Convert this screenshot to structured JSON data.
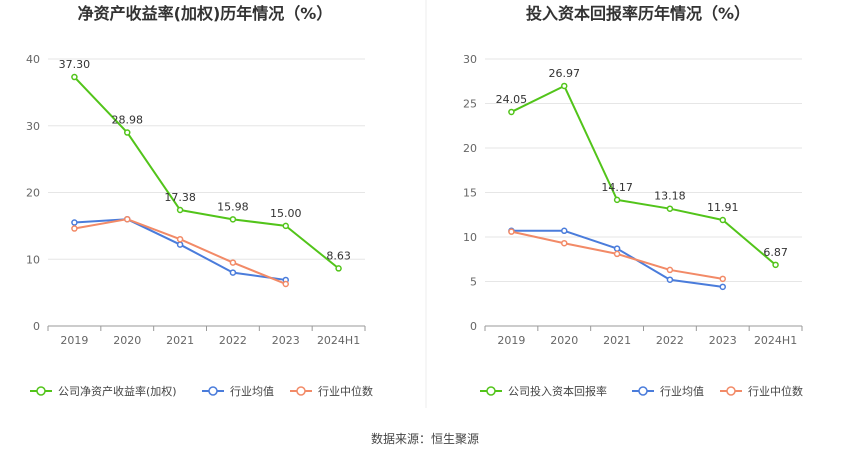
{
  "source": "数据来源：恒生聚源",
  "chart_data": [
    {
      "type": "line",
      "title": "净资产收益率(加权)历年情况（%）",
      "categories": [
        "2019",
        "2020",
        "2021",
        "2022",
        "2023",
        "2024H1"
      ],
      "ylim": [
        0,
        40
      ],
      "yticks": [
        0,
        10,
        20,
        30,
        40
      ],
      "series": [
        {
          "name": "公司净资产收益率(加权)",
          "color": "#52c41a",
          "labeled": true,
          "values": [
            37.3,
            28.98,
            17.38,
            15.98,
            15.0,
            8.63
          ],
          "labels": [
            "37.30",
            "28.98",
            "17.38",
            "15.98",
            "15.00",
            "8.63"
          ]
        },
        {
          "name": "行业均值",
          "color": "#4a7cdb",
          "labeled": false,
          "values": [
            15.5,
            16.0,
            12.2,
            8.0,
            6.9,
            null
          ]
        },
        {
          "name": "行业中位数",
          "color": "#f28a67",
          "labeled": false,
          "values": [
            14.6,
            16.0,
            13.0,
            9.5,
            6.3,
            null
          ]
        }
      ]
    },
    {
      "type": "line",
      "title": "投入资本回报率历年情况（%）",
      "categories": [
        "2019",
        "2020",
        "2021",
        "2022",
        "2023",
        "2024H1"
      ],
      "ylim": [
        0,
        30
      ],
      "yticks": [
        0,
        5,
        10,
        15,
        20,
        25,
        30
      ],
      "series": [
        {
          "name": "公司投入资本回报率",
          "color": "#52c41a",
          "labeled": true,
          "values": [
            24.05,
            26.97,
            14.17,
            13.18,
            11.91,
            6.87
          ],
          "labels": [
            "24.05",
            "26.97",
            "14.17",
            "13.18",
            "11.91",
            "6.87"
          ]
        },
        {
          "name": "行业均值",
          "color": "#4a7cdb",
          "labeled": false,
          "values": [
            10.7,
            10.7,
            8.7,
            5.2,
            4.4,
            null
          ]
        },
        {
          "name": "行业中位数",
          "color": "#f28a67",
          "labeled": false,
          "values": [
            10.6,
            9.3,
            8.1,
            6.3,
            5.3,
            null
          ]
        }
      ]
    }
  ]
}
